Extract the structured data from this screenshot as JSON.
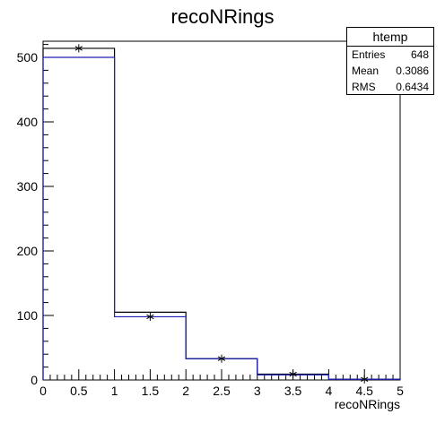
{
  "chart_data": {
    "type": "bar",
    "title": "recoNRings",
    "xlabel": "recoNRings",
    "ylabel": "",
    "xlim": [
      0,
      5
    ],
    "ylim": [
      0,
      525
    ],
    "grid": false,
    "x_ticks": [
      "0",
      "0.5",
      "1",
      "1.5",
      "2",
      "2.5",
      "3",
      "3.5",
      "4",
      "4.5",
      "5"
    ],
    "y_ticks": [
      "0",
      "100",
      "200",
      "300",
      "400",
      "500"
    ],
    "bin_edges": [
      0,
      1,
      2,
      3,
      4,
      5
    ],
    "series": [
      {
        "name": "",
        "kind": "step-histogram",
        "color": "#000000",
        "values": [
          514,
          105,
          33,
          9,
          1
        ]
      },
      {
        "name": "",
        "kind": "step-histogram",
        "color": "#1f1fb4",
        "values": [
          500,
          98,
          33,
          8,
          1
        ]
      }
    ],
    "markers": {
      "symbol": "asterisk",
      "x": [
        0.5,
        1.5,
        2.5,
        3.5,
        4.5
      ],
      "y": [
        514,
        98,
        33,
        9,
        1
      ]
    },
    "stats_box": {
      "name": "htemp",
      "rows": [
        {
          "label": "Entries",
          "value": "648"
        },
        {
          "label": "Mean",
          "value": "0.3086"
        },
        {
          "label": "RMS",
          "value": "0.6434"
        }
      ]
    }
  }
}
